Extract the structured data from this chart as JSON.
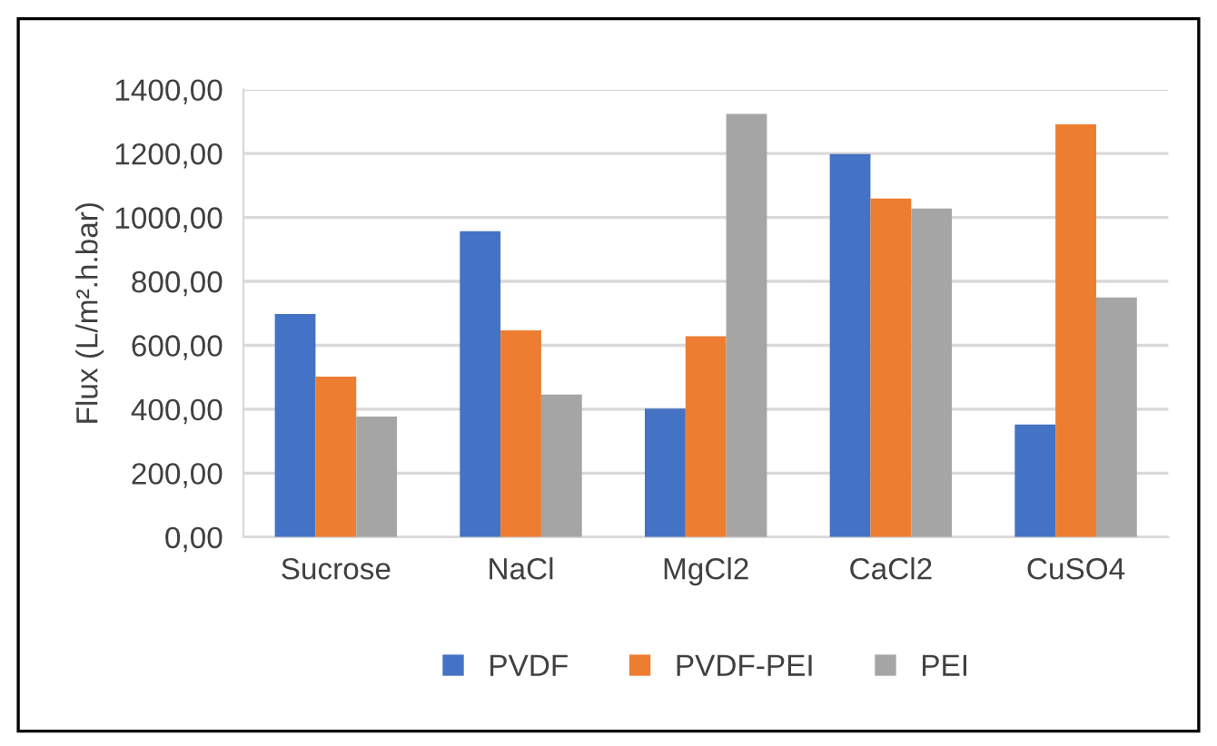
{
  "chart_data": {
    "type": "bar",
    "ylabel": "Flux (L/m².h.bar)",
    "categories": [
      "Sucrose",
      "NaCl",
      "MgCl2",
      "CaCl2",
      "CuSO4"
    ],
    "series": [
      {
        "name": "PVDF",
        "color": "#4472c4",
        "values": [
          698,
          957,
          402,
          1198,
          352
        ]
      },
      {
        "name": "PVDF-PEI",
        "color": "#ed7d31",
        "values": [
          502,
          647,
          628,
          1059,
          1291
        ]
      },
      {
        "name": "PEI",
        "color": "#a5a5a5",
        "values": [
          377,
          446,
          1324,
          1028,
          750
        ]
      }
    ],
    "ylim": [
      0,
      1400
    ],
    "yticks": [
      {
        "value": 0,
        "label": "0,00"
      },
      {
        "value": 200,
        "label": "200,00"
      },
      {
        "value": 400,
        "label": "400,00"
      },
      {
        "value": 600,
        "label": "600,00"
      },
      {
        "value": 800,
        "label": "800,00"
      },
      {
        "value": 1000,
        "label": "1000,00"
      },
      {
        "value": 1200,
        "label": "1200,00"
      },
      {
        "value": 1400,
        "label": "1400,00"
      }
    ],
    "grid": "y",
    "legend": "bottom"
  }
}
